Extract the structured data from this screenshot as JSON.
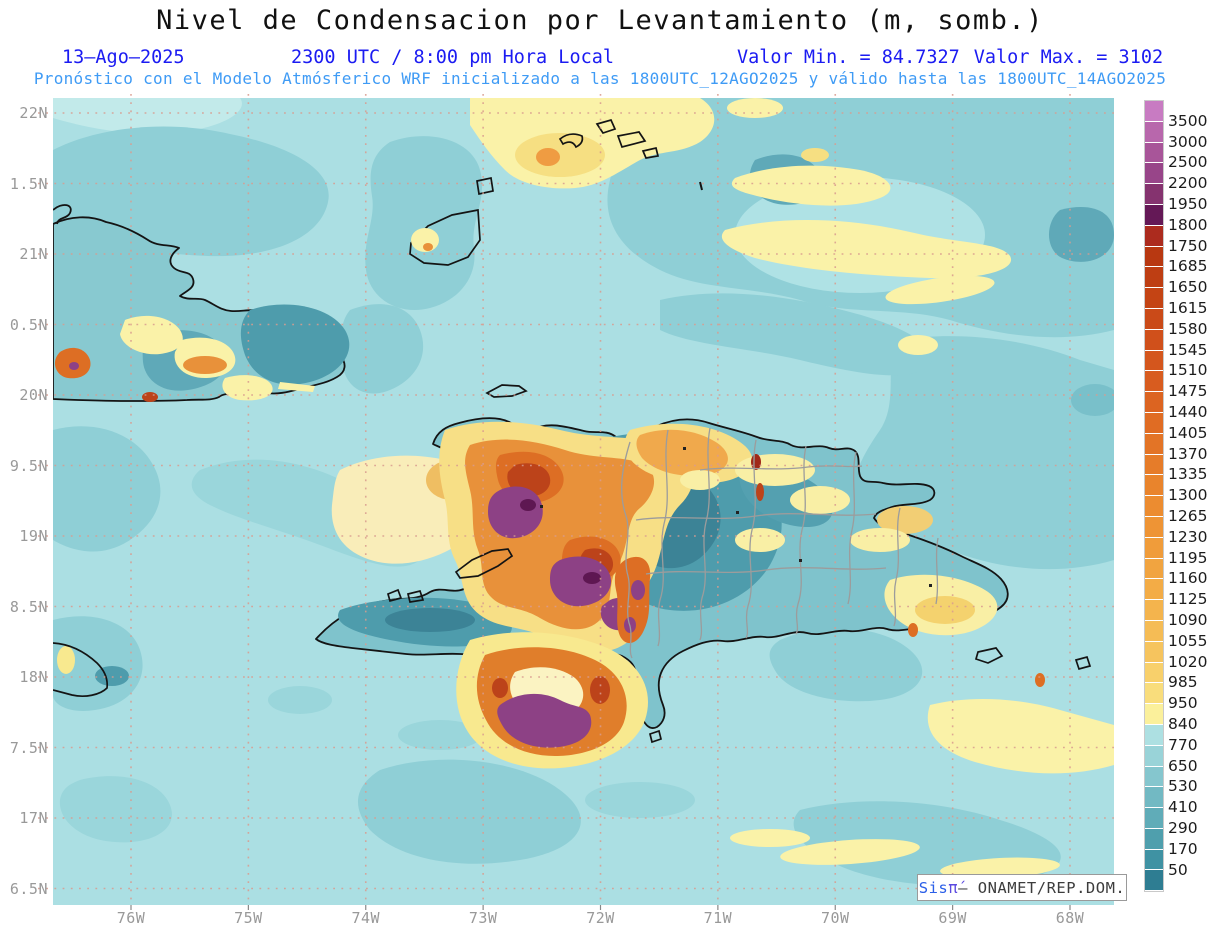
{
  "header": {
    "title": "Nivel de Condensacion por Levantamiento (m, somb.)",
    "date": "13–Ago–2025",
    "time": "2300 UTC / 8:00 pm Hora Local",
    "min_label": "Valor Min. = 84.7327",
    "max_label": "Valor Max. = 3102",
    "forecast": "Pronóstico con el Modelo Atmósferico WRF inicializado a las 1800UTC_12AGO2025 y válido hasta las  1800UTC_14AGO2025",
    "colors": {
      "title": "#111111",
      "line2": "#1b1bf2",
      "line3": "#3f9bf5"
    }
  },
  "axes": {
    "y_labels": [
      "22N",
      "1.5N",
      "21N",
      "0.5N",
      "20N",
      "9.5N",
      "19N",
      "8.5N",
      "18N",
      "7.5N",
      "17N",
      "6.5N"
    ],
    "x_labels": [
      "76W",
      "75W",
      "74W",
      "73W",
      "72W",
      "71W",
      "70W",
      "69W",
      "68W"
    ]
  },
  "colorbar": {
    "labels": [
      "3500",
      "3000",
      "2500",
      "2200",
      "1950",
      "1800",
      "1750",
      "1685",
      "1650",
      "1615",
      "1580",
      "1545",
      "1510",
      "1475",
      "1440",
      "1405",
      "1370",
      "1335",
      "1300",
      "1265",
      "1230",
      "1195",
      "1160",
      "1125",
      "1090",
      "1055",
      "1020",
      "985",
      "950",
      "840",
      "770",
      "650",
      "530",
      "410",
      "290",
      "170",
      "50"
    ],
    "colors": [
      "#C87BC2",
      "#B867AC",
      "#A85599",
      "#984589",
      "#85336F",
      "#641856",
      "#AC2B1E",
      "#B83811",
      "#BE3E13",
      "#C44414",
      "#CA4A18",
      "#D0501B",
      "#D4561D",
      "#D85C1F",
      "#DC6421",
      "#E06C23",
      "#E37426",
      "#E67C29",
      "#E9842C",
      "#EC8C30",
      "#EE9435",
      "#F09C3A",
      "#F1A440",
      "#F3AC46",
      "#F4B44D",
      "#F5BC55",
      "#F6C45E",
      "#F8D06B",
      "#F9DD7C",
      "#FBF09B",
      "#ADE0E2",
      "#99D3D8",
      "#85C6CE",
      "#72B9C3",
      "#60ACB8",
      "#4F9FAD",
      "#3F92A3",
      "#2E7D92"
    ]
  },
  "attribution": {
    "brand": "Sis",
    "pi": "π́",
    "dash": "–",
    "org": "ONAMET/REP.DOM."
  }
}
